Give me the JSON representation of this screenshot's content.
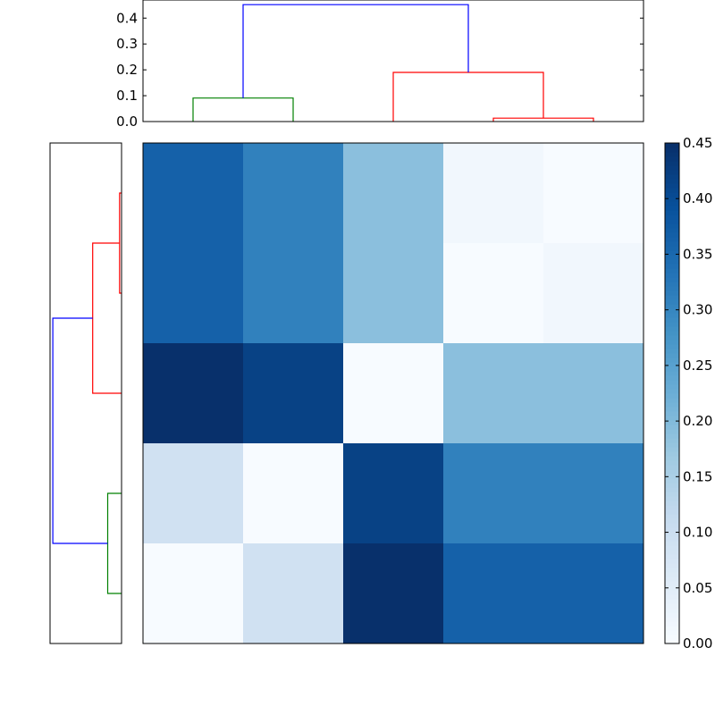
{
  "chart_data": [
    {
      "type": "dendrogram",
      "orientation": "top",
      "yticks": [
        "0.0",
        "0.1",
        "0.2",
        "0.3",
        "0.4"
      ],
      "ylim": [
        0,
        0.47
      ],
      "leaf_count": 5,
      "links": [
        {
          "x": [
            0,
            0,
            1,
            1
          ],
          "y": [
            0,
            0.091,
            0.091,
            0
          ],
          "color": "#008000"
        },
        {
          "x": [
            3,
            3,
            4,
            4
          ],
          "y": [
            0,
            0.013,
            0.013,
            0
          ],
          "color": "#ff0000"
        },
        {
          "x": [
            2,
            2,
            3.5,
            3.5
          ],
          "y": [
            0,
            0.19,
            0.19,
            0.013
          ],
          "color": "#ff0000"
        },
        {
          "x": [
            0.5,
            0.5,
            2.75,
            2.75
          ],
          "y": [
            0.091,
            0.452,
            0.452,
            0.19
          ],
          "color": "#0000ff"
        }
      ]
    },
    {
      "type": "dendrogram",
      "orientation": "left",
      "xlim": [
        0,
        0.47
      ],
      "leaf_count": 5,
      "links": [
        {
          "x": [
            0,
            0,
            1,
            1
          ],
          "y": [
            0,
            0.091,
            0.091,
            0
          ],
          "color": "#008000"
        },
        {
          "x": [
            3,
            3,
            4,
            4
          ],
          "y": [
            0,
            0.013,
            0.013,
            0
          ],
          "color": "#ff0000"
        },
        {
          "x": [
            2,
            2,
            3.5,
            3.5
          ],
          "y": [
            0,
            0.19,
            0.19,
            0.013
          ],
          "color": "#ff0000"
        },
        {
          "x": [
            0.5,
            0.5,
            2.75,
            2.75
          ],
          "y": [
            0.091,
            0.452,
            0.452,
            0.19
          ],
          "color": "#0000ff"
        }
      ]
    },
    {
      "type": "heatmap",
      "colormap": "Blues",
      "vmin": 0,
      "vmax": 0.45,
      "rows": 5,
      "cols": 5,
      "values": [
        [
          0.365,
          0.31,
          0.19,
          0.013,
          0.0
        ],
        [
          0.365,
          0.31,
          0.19,
          0.0,
          0.013
        ],
        [
          0.452,
          0.42,
          0.0,
          0.19,
          0.19
        ],
        [
          0.09,
          0.0,
          0.42,
          0.31,
          0.31
        ],
        [
          0.0,
          0.09,
          0.452,
          0.365,
          0.365
        ]
      ]
    },
    {
      "type": "colorbar",
      "colormap": "Blues",
      "vmin": 0,
      "vmax": 0.45,
      "ticks": [
        "0.00",
        "0.05",
        "0.10",
        "0.15",
        "0.20",
        "0.25",
        "0.30",
        "0.35",
        "0.40",
        "0.45"
      ]
    }
  ]
}
